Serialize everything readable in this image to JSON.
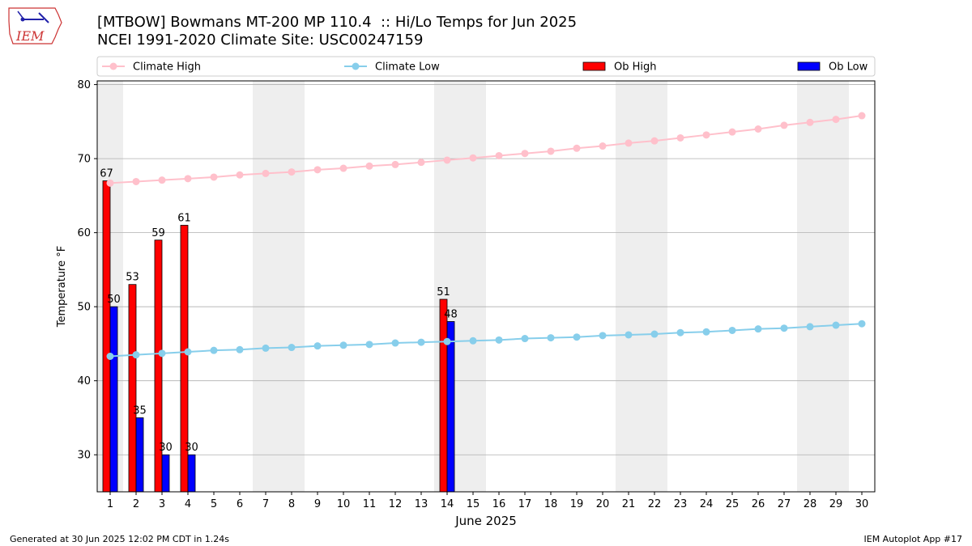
{
  "header": {
    "title_line1": "[MTBOW] Bowmans MT-200 MP 110.4  :: Hi/Lo Temps for Jun 2025",
    "title_line2": "NCEI 1991-2020 Climate Site: USC00247159",
    "logo_text": "IEM"
  },
  "footer": {
    "generated": "Generated at 30 Jun 2025 12:02 PM CDT in 1.24s",
    "app": "IEM Autoplot App #17"
  },
  "colors": {
    "climate_high": "#ffc0cb",
    "climate_low": "#87ceeb",
    "ob_high": "#ff0000",
    "ob_low": "#0000ff",
    "weekend_shade": "#eeeeee",
    "grid": "#b0b0b0"
  },
  "chart_data": {
    "type": "bar",
    "xlabel": "June 2025",
    "ylabel": "Temperature °F",
    "xlim": [
      0.5,
      30.5
    ],
    "ylim": [
      25,
      80.5
    ],
    "y_ticks": [
      30,
      40,
      50,
      60,
      70,
      80
    ],
    "x_ticks": [
      1,
      2,
      3,
      4,
      5,
      6,
      7,
      8,
      9,
      10,
      11,
      12,
      13,
      14,
      15,
      16,
      17,
      18,
      19,
      20,
      21,
      22,
      23,
      24,
      25,
      26,
      27,
      28,
      29,
      30
    ],
    "grid": "horizontal",
    "legend": {
      "placement": "top",
      "entries": [
        "Climate High",
        "Climate Low",
        "Ob High",
        "Ob Low"
      ]
    },
    "weekend_ranges": [
      [
        0.5,
        1.5
      ],
      [
        6.5,
        8.5
      ],
      [
        13.5,
        15.5
      ],
      [
        20.5,
        22.5
      ],
      [
        27.5,
        29.5
      ]
    ],
    "climate_high": {
      "name": "Climate High",
      "x": [
        1,
        2,
        3,
        4,
        5,
        6,
        7,
        8,
        9,
        10,
        11,
        12,
        13,
        14,
        15,
        16,
        17,
        18,
        19,
        20,
        21,
        22,
        23,
        24,
        25,
        26,
        27,
        28,
        29,
        30
      ],
      "values": [
        66.7,
        66.9,
        67.1,
        67.3,
        67.5,
        67.8,
        68.0,
        68.2,
        68.5,
        68.7,
        69.0,
        69.2,
        69.5,
        69.8,
        70.1,
        70.4,
        70.7,
        71.0,
        71.4,
        71.7,
        72.1,
        72.4,
        72.8,
        73.2,
        73.6,
        74.0,
        74.5,
        74.9,
        75.3,
        75.8
      ]
    },
    "climate_low": {
      "name": "Climate Low",
      "x": [
        1,
        2,
        3,
        4,
        5,
        6,
        7,
        8,
        9,
        10,
        11,
        12,
        13,
        14,
        15,
        16,
        17,
        18,
        19,
        20,
        21,
        22,
        23,
        24,
        25,
        26,
        27,
        28,
        29,
        30
      ],
      "values": [
        43.3,
        43.5,
        43.7,
        43.9,
        44.1,
        44.2,
        44.4,
        44.5,
        44.7,
        44.8,
        44.9,
        45.1,
        45.2,
        45.3,
        45.4,
        45.5,
        45.7,
        45.8,
        45.9,
        46.1,
        46.2,
        46.3,
        46.5,
        46.6,
        46.8,
        47.0,
        47.1,
        47.3,
        47.5,
        47.7
      ]
    },
    "ob_high": {
      "name": "Ob High",
      "days": [
        1,
        2,
        3,
        4,
        14
      ],
      "values": [
        67,
        53,
        59,
        61,
        51
      ]
    },
    "ob_low": {
      "name": "Ob Low",
      "days": [
        1,
        2,
        3,
        4,
        14
      ],
      "values": [
        50,
        35,
        30,
        30,
        48
      ]
    }
  }
}
